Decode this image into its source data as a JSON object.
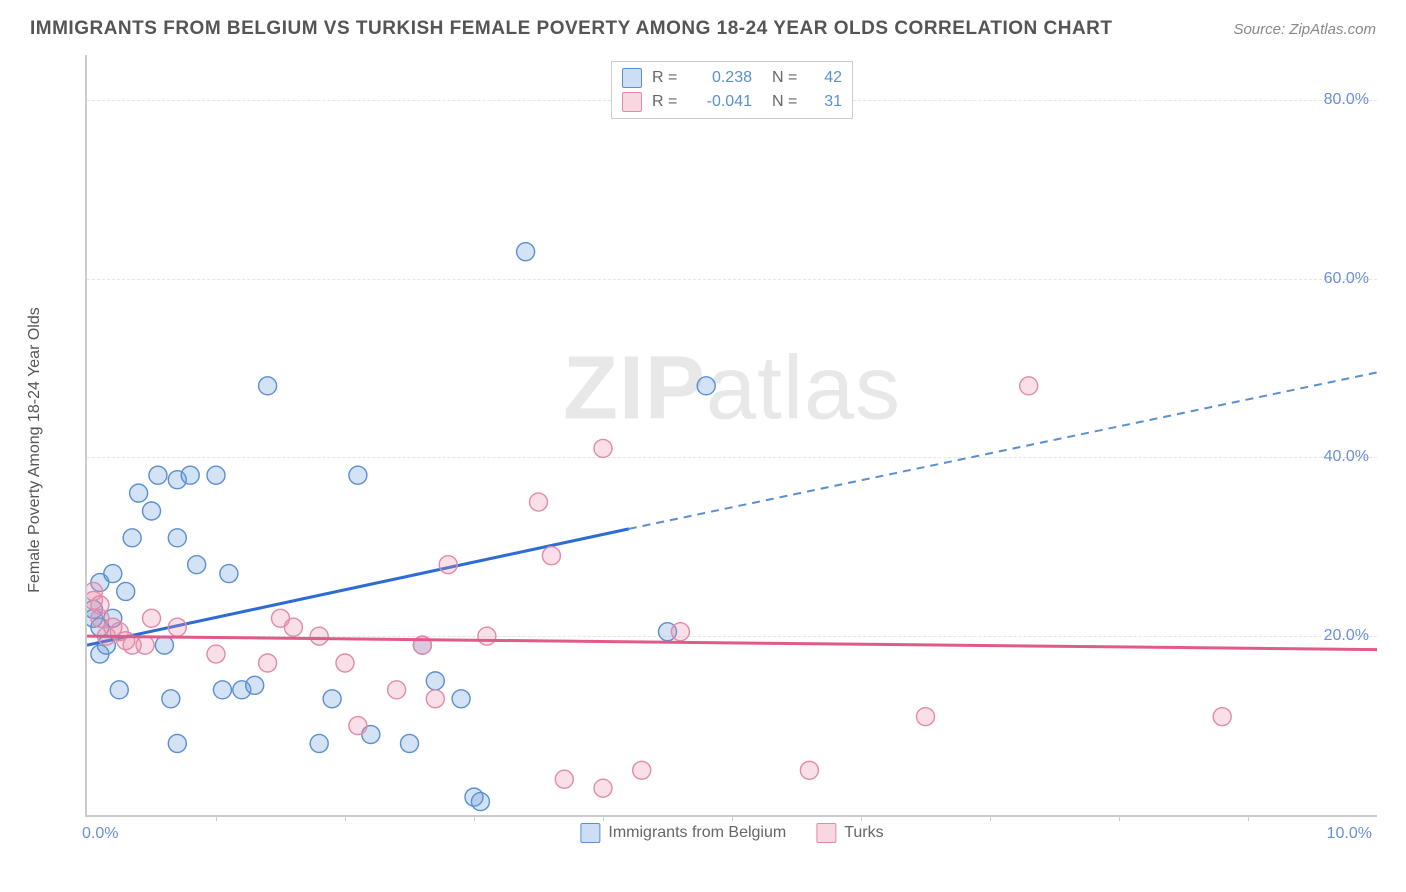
{
  "title": "IMMIGRANTS FROM BELGIUM VS TURKISH FEMALE POVERTY AMONG 18-24 YEAR OLDS CORRELATION CHART",
  "source": "Source: ZipAtlas.com",
  "watermark": {
    "part1": "ZIP",
    "part2": "atlas"
  },
  "ylabel": "Female Poverty Among 18-24 Year Olds",
  "chart": {
    "type": "scatter",
    "xlim": [
      0,
      10
    ],
    "ylim": [
      0,
      85
    ],
    "x_ticks": [
      0,
      5,
      10
    ],
    "x_tick_labels": [
      "0.0%",
      "",
      "10.0%"
    ],
    "y_gridlines": [
      20,
      40,
      60,
      80
    ],
    "y_tick_labels": [
      "20.0%",
      "40.0%",
      "60.0%",
      "80.0%"
    ],
    "background_color": "#ffffff",
    "grid_color": "#e5e5e5",
    "axis_color": "#cccccc",
    "marker_radius": 9,
    "marker_stroke_width": 1.4,
    "series": [
      {
        "name": "Immigrants from Belgium",
        "fill": "rgba(108,160,220,0.30)",
        "stroke": "#5a8fd0",
        "R": "0.238",
        "N": "42",
        "regression": {
          "solid_color": "#2c6cd4",
          "dash_color": "#5a8fd0",
          "x1": 0.0,
          "y1": 19.0,
          "xm": 4.2,
          "ym": 32.0,
          "x2": 10.0,
          "y2": 49.5
        },
        "points": [
          [
            0.05,
            23
          ],
          [
            0.05,
            22
          ],
          [
            0.1,
            21
          ],
          [
            0.1,
            26
          ],
          [
            0.1,
            18
          ],
          [
            0.15,
            19
          ],
          [
            0.2,
            27
          ],
          [
            0.2,
            22
          ],
          [
            0.25,
            14
          ],
          [
            0.3,
            25
          ],
          [
            0.35,
            31
          ],
          [
            0.4,
            36
          ],
          [
            0.5,
            34
          ],
          [
            0.55,
            38
          ],
          [
            0.6,
            19
          ],
          [
            0.65,
            13
          ],
          [
            0.7,
            31
          ],
          [
            0.7,
            37.5
          ],
          [
            0.7,
            8
          ],
          [
            0.8,
            38
          ],
          [
            0.85,
            28
          ],
          [
            1.0,
            38
          ],
          [
            1.05,
            14
          ],
          [
            1.1,
            27
          ],
          [
            1.2,
            14
          ],
          [
            1.3,
            14.5
          ],
          [
            1.4,
            48
          ],
          [
            1.8,
            8
          ],
          [
            1.9,
            13
          ],
          [
            2.1,
            38
          ],
          [
            2.2,
            9
          ],
          [
            2.5,
            8
          ],
          [
            2.6,
            19
          ],
          [
            2.7,
            15
          ],
          [
            2.9,
            13
          ],
          [
            3.0,
            2
          ],
          [
            3.4,
            63
          ],
          [
            4.5,
            20.5
          ],
          [
            4.8,
            48
          ],
          [
            3.05,
            1.5
          ]
        ]
      },
      {
        "name": "Turks",
        "fill": "rgba(235,140,170,0.28)",
        "stroke": "#e28aa8",
        "R": "-0.041",
        "N": "31",
        "regression": {
          "solid_color": "#e05a8a",
          "dash_color": "#e28aa8",
          "x1": 0.0,
          "y1": 20.0,
          "xm": 10.0,
          "ym": 18.5,
          "x2": 10.0,
          "y2": 18.5
        },
        "points": [
          [
            0.05,
            24
          ],
          [
            0.05,
            25
          ],
          [
            0.1,
            22
          ],
          [
            0.1,
            23.5
          ],
          [
            0.15,
            20
          ],
          [
            0.2,
            21
          ],
          [
            0.25,
            20.5
          ],
          [
            0.3,
            19.5
          ],
          [
            0.35,
            19
          ],
          [
            0.45,
            19
          ],
          [
            0.5,
            22
          ],
          [
            0.7,
            21
          ],
          [
            1.0,
            18
          ],
          [
            1.4,
            17
          ],
          [
            1.5,
            22
          ],
          [
            1.6,
            21
          ],
          [
            1.8,
            20
          ],
          [
            2.0,
            17
          ],
          [
            2.1,
            10
          ],
          [
            2.4,
            14
          ],
          [
            2.6,
            19
          ],
          [
            2.7,
            13
          ],
          [
            2.8,
            28
          ],
          [
            3.1,
            20
          ],
          [
            3.5,
            35
          ],
          [
            3.6,
            29
          ],
          [
            3.7,
            4
          ],
          [
            4.0,
            3
          ],
          [
            4.6,
            20.5
          ],
          [
            4.0,
            41
          ],
          [
            4.3,
            5
          ],
          [
            5.6,
            5
          ],
          [
            6.5,
            11
          ],
          [
            7.3,
            48
          ],
          [
            8.8,
            11
          ]
        ]
      }
    ]
  },
  "legend_bottom": [
    {
      "label": "Immigrants from Belgium",
      "swatch": "blue"
    },
    {
      "label": "Turks",
      "swatch": "pink"
    }
  ]
}
